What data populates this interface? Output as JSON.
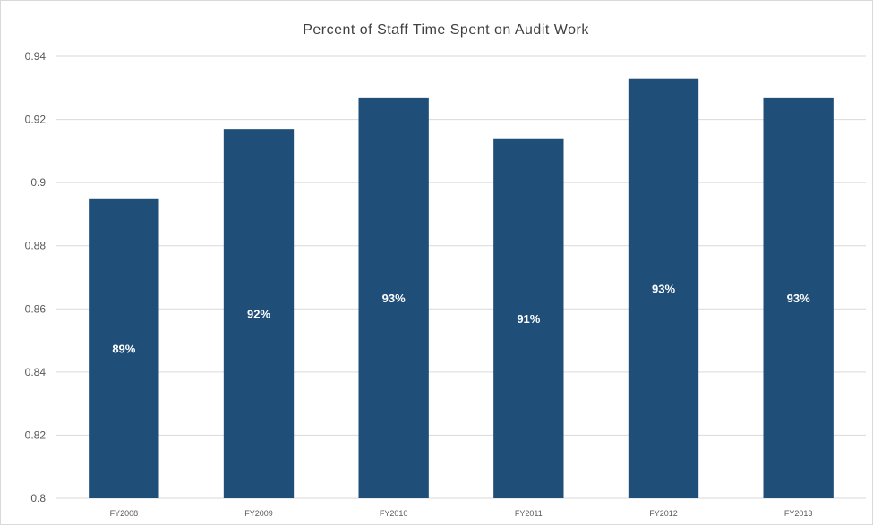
{
  "chart_data": {
    "type": "bar",
    "title": "Percent of Staff Time Spent on Audit Work",
    "xlabel": "",
    "ylabel": "",
    "categories": [
      "FY2008",
      "FY2009",
      "FY2010",
      "FY2011",
      "FY2012",
      "FY2013"
    ],
    "values": [
      0.895,
      0.917,
      0.927,
      0.914,
      0.933,
      0.927
    ],
    "data_labels": [
      "89%",
      "92%",
      "93%",
      "91%",
      "93%",
      "93%"
    ],
    "ylim": [
      0.8,
      0.94
    ],
    "yticks": [
      "0.8",
      "0.82",
      "0.84",
      "0.86",
      "0.88",
      "0.9",
      "0.92",
      "0.94"
    ],
    "grid": true,
    "legend": "none",
    "bar_color": "#1f4e79",
    "grid_color": "#d9d9d9"
  }
}
